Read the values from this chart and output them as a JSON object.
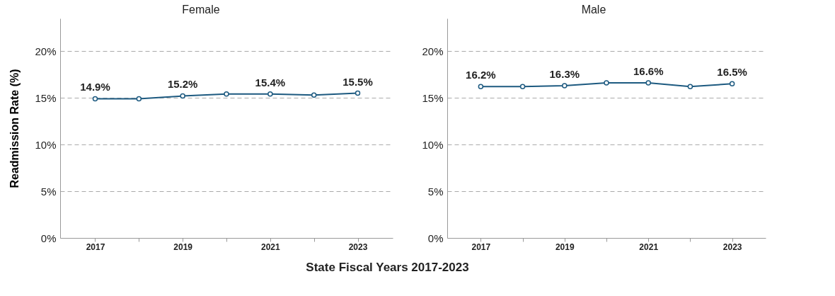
{
  "chart_data": [
    {
      "type": "line",
      "title": "Female",
      "ylabel": "Readmission Rate (%)",
      "xlabel": "State Fiscal Years 2017-2023",
      "x": [
        2017,
        2018,
        2019,
        2020,
        2021,
        2022,
        2023
      ],
      "series": [
        {
          "color": "#1d5a80",
          "values": [
            14.9,
            14.9,
            15.2,
            15.4,
            15.4,
            15.3,
            15.5
          ],
          "value_labels": [
            "14.9%",
            null,
            "15.2%",
            null,
            "15.4%",
            null,
            "15.5%"
          ]
        }
      ],
      "xlim": [
        2016.2,
        2023.8
      ],
      "xticks": [
        2017,
        {
          "value": 2018,
          "label": null
        },
        2019,
        {
          "value": 2020,
          "label": null
        },
        2021,
        {
          "value": 2022,
          "label": null
        },
        2023
      ],
      "ylim": [
        0,
        23.5
      ],
      "yticks": [
        {
          "value": 0,
          "label": "0%"
        },
        {
          "value": 5,
          "label": "5%"
        },
        {
          "value": 10,
          "label": "10%"
        },
        {
          "value": 15,
          "label": "15%"
        },
        {
          "value": 20,
          "label": "20%"
        }
      ],
      "grid": "y",
      "marker": "circle",
      "line_style": "solid"
    },
    {
      "type": "line",
      "title": "Male",
      "x": [
        2017,
        2018,
        2019,
        2020,
        2021,
        2022,
        2023
      ],
      "series": [
        {
          "color": "#1d5a80",
          "values": [
            16.2,
            16.2,
            16.3,
            16.6,
            16.6,
            16.2,
            16.5
          ],
          "value_labels": [
            "16.2%",
            null,
            "16.3%",
            null,
            "16.6%",
            null,
            "16.5%"
          ]
        }
      ],
      "xlim": [
        2016.2,
        2023.8
      ],
      "xticks": [
        2017,
        {
          "value": 2018,
          "label": null
        },
        2019,
        {
          "value": 2020,
          "label": null
        },
        2021,
        {
          "value": 2022,
          "label": null
        },
        2023
      ],
      "ylim": [
        0,
        23.5
      ],
      "yticks": [
        {
          "value": 0,
          "label": "0%"
        },
        {
          "value": 5,
          "label": "5%"
        },
        {
          "value": 10,
          "label": "10%"
        },
        {
          "value": 15,
          "label": "15%"
        },
        {
          "value": 20,
          "label": "20%"
        }
      ],
      "grid": "y",
      "marker": "circle",
      "line_style": "solid"
    }
  ]
}
